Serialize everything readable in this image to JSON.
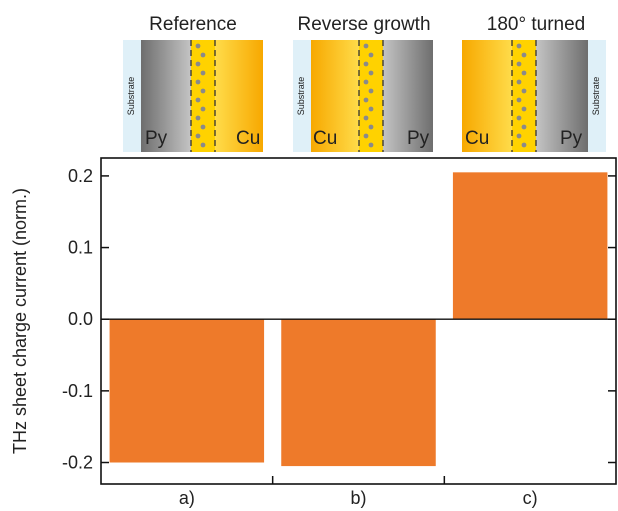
{
  "chart_data": {
    "type": "bar",
    "categories": [
      "a)",
      "b)",
      "c)"
    ],
    "values": [
      -0.2,
      -0.205,
      0.205
    ],
    "ylabel": "THz sheet charge current (norm.)",
    "xlabel": "",
    "ylim": [
      -0.23,
      0.225
    ],
    "yticks": [
      "0.2",
      "0.1",
      "0.0",
      "-0.1",
      "-0.2"
    ],
    "ytick_values": [
      0.2,
      0.1,
      0.0,
      -0.1,
      -0.2
    ],
    "bar_color": "#EE7A2A",
    "grid": false
  },
  "insets": [
    {
      "title": "Reference",
      "left_label": "Py",
      "right_label": "Cu",
      "substrate_label": "Substrate",
      "substrate_side": "left",
      "order": [
        "substrate",
        "py",
        "interface",
        "cu"
      ]
    },
    {
      "title": "Reverse growth",
      "left_label": "Cu",
      "right_label": "Py",
      "substrate_label": "Substrate",
      "substrate_side": "left",
      "order": [
        "substrate",
        "cu",
        "interface",
        "py"
      ]
    },
    {
      "title": "180° turned",
      "left_label": "Cu",
      "right_label": "Py",
      "substrate_label": "Substrate",
      "substrate_side": "right",
      "order": [
        "cu",
        "interface",
        "py",
        "substrate"
      ]
    }
  ],
  "colors": {
    "cu": "#FFC800",
    "py": "#9a9a9a",
    "substrate": "#dff0f8",
    "dots": "#8a8a8a"
  }
}
